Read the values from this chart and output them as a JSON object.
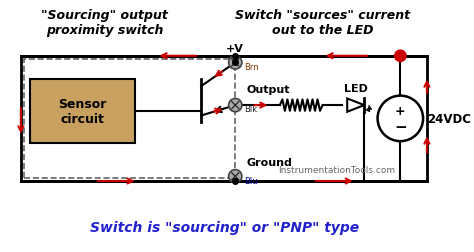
{
  "title_left": "\"Sourcing\" output\nproximity switch",
  "title_right": "Switch \"sources\" current\nout to the LED",
  "bottom_text": "Switch is \"sourcing\" or \"PNP\" type",
  "watermark": "InstrumentationTools.com",
  "bg_color": "#ffffff",
  "box_bg": "#c8a060",
  "box_border": "#000000",
  "dashed_border": "#666666",
  "circuit_color": "#000000",
  "arrow_color": "#cc0000",
  "voltage_label": "+V",
  "voltage_24": "24VDC",
  "output_label": "Output",
  "ground_label": "Ground",
  "led_label": "LED",
  "connector_Brn": "Brn",
  "connector_Blk": "Blk",
  "connector_Blu": "Blu",
  "bottom_text_color": "#2222cc",
  "connector_color": "#888888"
}
